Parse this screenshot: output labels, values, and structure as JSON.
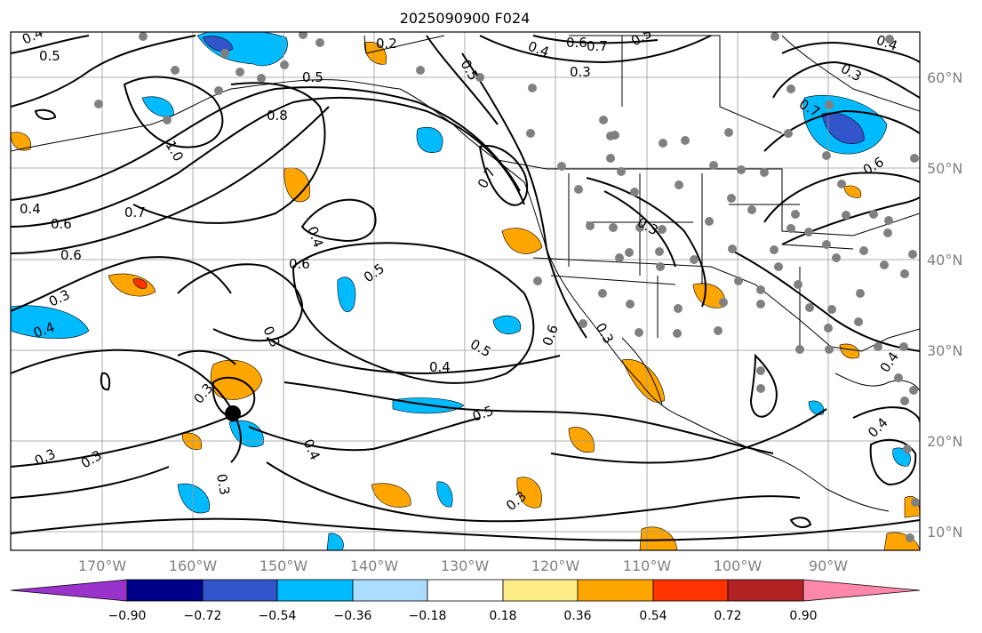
{
  "title": "2025090900 F024",
  "lon_labels": [
    "170°W",
    "160°W",
    "150°W",
    "140°W",
    "130°W",
    "120°W",
    "110°W",
    "100°W",
    "90°W"
  ],
  "lat_labels": [
    "60°N",
    "50°N",
    "40°N",
    "30°N",
    "20°N",
    "10°N"
  ],
  "colorbar": {
    "ticks": [
      "−0.90",
      "−0.72",
      "−0.54",
      "−0.36",
      "−0.18",
      "0.18",
      "0.36",
      "0.54",
      "0.72",
      "0.90"
    ],
    "colors": [
      "#9933cc",
      "#000088",
      "#3355cc",
      "#00bbff",
      "#aaddff",
      "#ffffff",
      "#ffee88",
      "#ffa500",
      "#ff3300",
      "#b22222",
      "#ff88aa"
    ]
  },
  "contour_labels": [
    "0.4",
    "0.5",
    "0.2",
    "0.4",
    "0.6",
    "0.7",
    "0.3",
    "0.5",
    "0.8",
    "0.5",
    "1.0",
    "0.4",
    "0.6",
    "0.7",
    "0.6",
    "0.3",
    "0.4",
    "0.6",
    "0.5",
    "0.3",
    "0.4",
    "0.5",
    "0.4",
    "0.5",
    "0.3",
    "0.3",
    "0.3",
    "0.4",
    "0.3",
    "0.3",
    "0.6",
    "0.7",
    "0.5",
    "0.3",
    "0.7",
    "0.3",
    "0.6",
    "0.4",
    "0.4",
    "0.4",
    "0.3"
  ],
  "colors": {
    "contour": "#000000",
    "grid": "#999999",
    "station": "#808080",
    "marker": "#000000",
    "frame": "#000000"
  }
}
